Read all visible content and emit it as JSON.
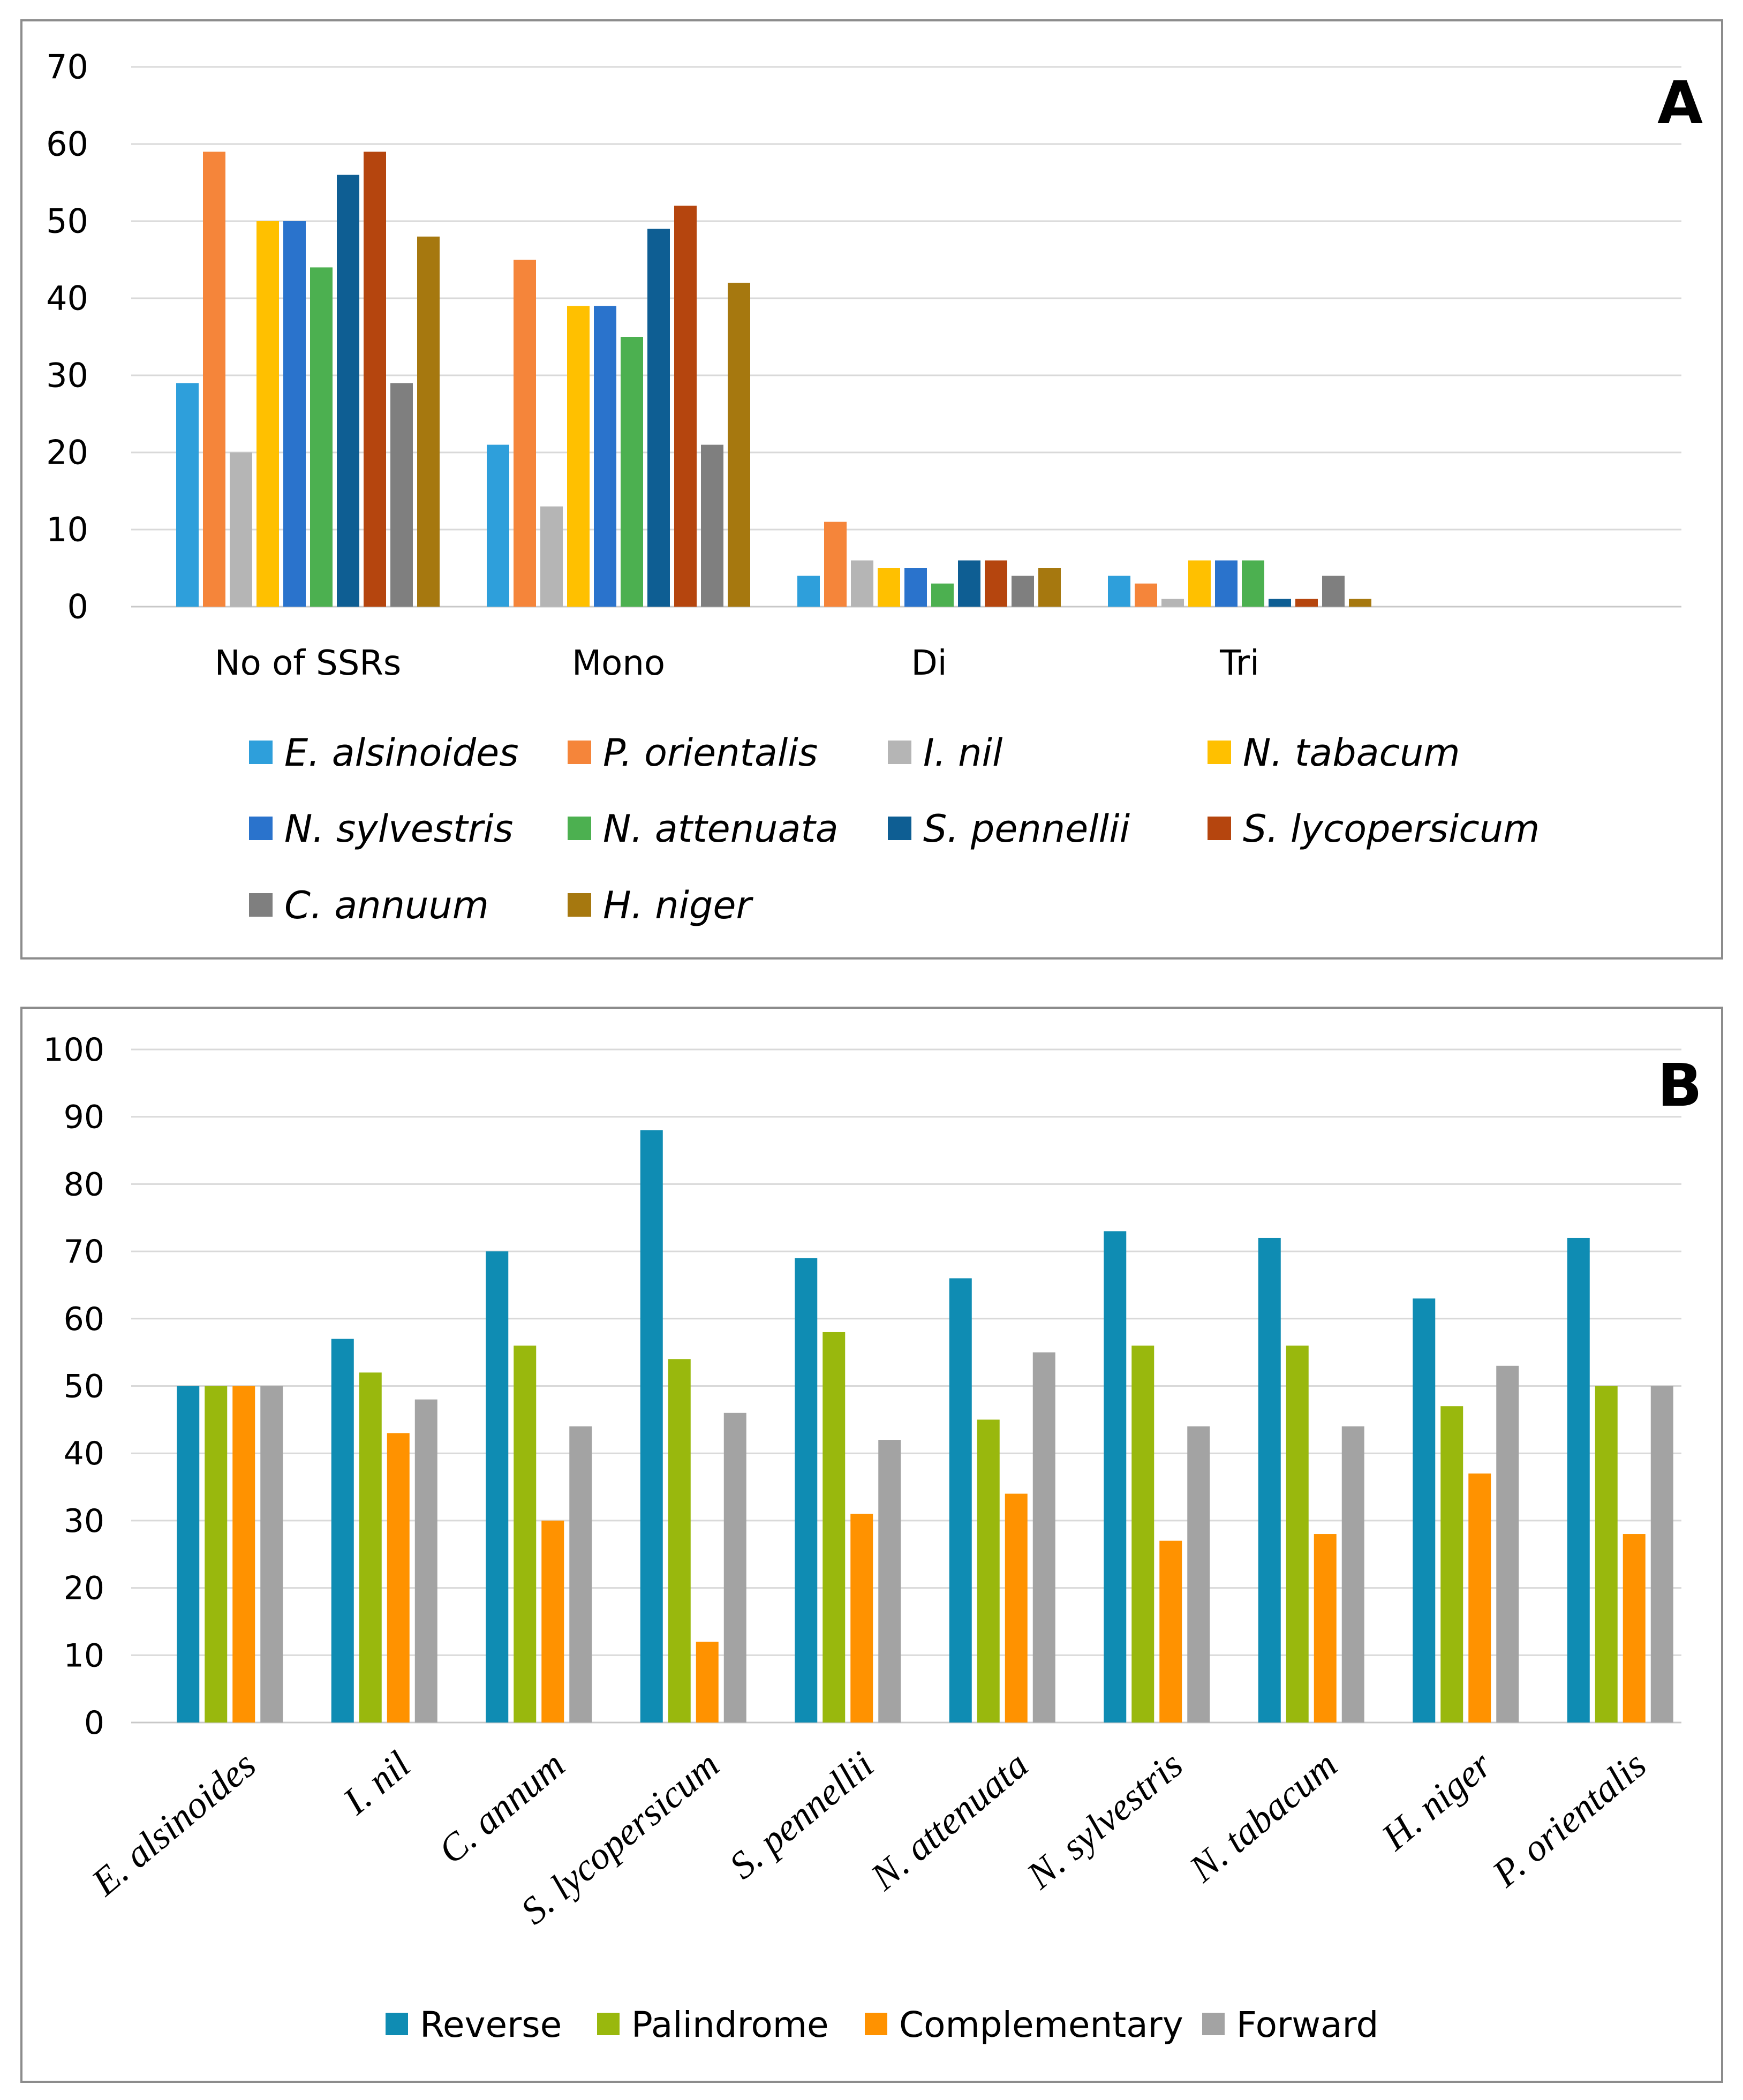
{
  "chart_data": [
    {
      "id": "A",
      "type": "bar",
      "panel_label": "A",
      "title": "",
      "xlabel": "",
      "ylabel": "",
      "ylim": [
        0,
        70
      ],
      "y_ticks": [
        0,
        10,
        20,
        30,
        40,
        50,
        60,
        70
      ],
      "grid": true,
      "legend_position": "bottom",
      "categories": [
        "No of SSRs",
        "Mono",
        "Di",
        "Tri"
      ],
      "series": [
        {
          "name": "E. alsinoides",
          "color": "#2e9fdb",
          "values": [
            29,
            21,
            4,
            4
          ]
        },
        {
          "name": "P. orientalis",
          "color": "#f5853a",
          "values": [
            59,
            45,
            11,
            3
          ]
        },
        {
          "name": "I. nil",
          "color": "#b5b5b5",
          "values": [
            20,
            13,
            6,
            1
          ]
        },
        {
          "name": "N. tabacum",
          "color": "#ffc000",
          "values": [
            50,
            39,
            5,
            6
          ]
        },
        {
          "name": "N. sylvestris",
          "color": "#2a73cc",
          "values": [
            50,
            39,
            5,
            6
          ]
        },
        {
          "name": "N. attenuata",
          "color": "#4cb050",
          "values": [
            44,
            35,
            3,
            6
          ]
        },
        {
          "name": "S. pennellii",
          "color": "#0e5e93",
          "values": [
            56,
            49,
            6,
            1
          ]
        },
        {
          "name": "S. lycopersicum",
          "color": "#b5450e",
          "values": [
            59,
            52,
            6,
            1
          ]
        },
        {
          "name": "C. annuum",
          "color": "#7f7f7f",
          "values": [
            29,
            21,
            4,
            4
          ]
        },
        {
          "name": "H. niger",
          "color": "#a6780f",
          "values": [
            48,
            42,
            5,
            1
          ]
        }
      ]
    },
    {
      "id": "B",
      "type": "bar",
      "panel_label": "B",
      "title": "",
      "xlabel": "",
      "ylabel": "",
      "ylim": [
        0,
        100
      ],
      "y_ticks": [
        0,
        10,
        20,
        30,
        40,
        50,
        60,
        70,
        80,
        90,
        100
      ],
      "grid": true,
      "legend_position": "bottom",
      "categories": [
        "E. alsinoides",
        "I. nil",
        "C. annum",
        "S. lycopersicum",
        "S. pennellii",
        "N. attenuata",
        "N. sylvestris",
        "N. tabacum",
        "H. niger",
        "P. orientalis"
      ],
      "series": [
        {
          "name": "Reverse",
          "color": "#0f8cb3",
          "values": [
            50,
            57,
            70,
            88,
            69,
            66,
            73,
            72,
            63,
            72
          ]
        },
        {
          "name": "Palindrome",
          "color": "#99b80d",
          "values": [
            50,
            52,
            56,
            54,
            58,
            45,
            56,
            56,
            47,
            50
          ]
        },
        {
          "name": "Complementary",
          "color": "#ff9200",
          "values": [
            50,
            43,
            30,
            12,
            31,
            34,
            27,
            28,
            37,
            28
          ]
        },
        {
          "name": "Forward",
          "color": "#a3a3a3",
          "values": [
            50,
            48,
            44,
            46,
            42,
            55,
            44,
            44,
            53,
            50
          ]
        }
      ]
    }
  ]
}
